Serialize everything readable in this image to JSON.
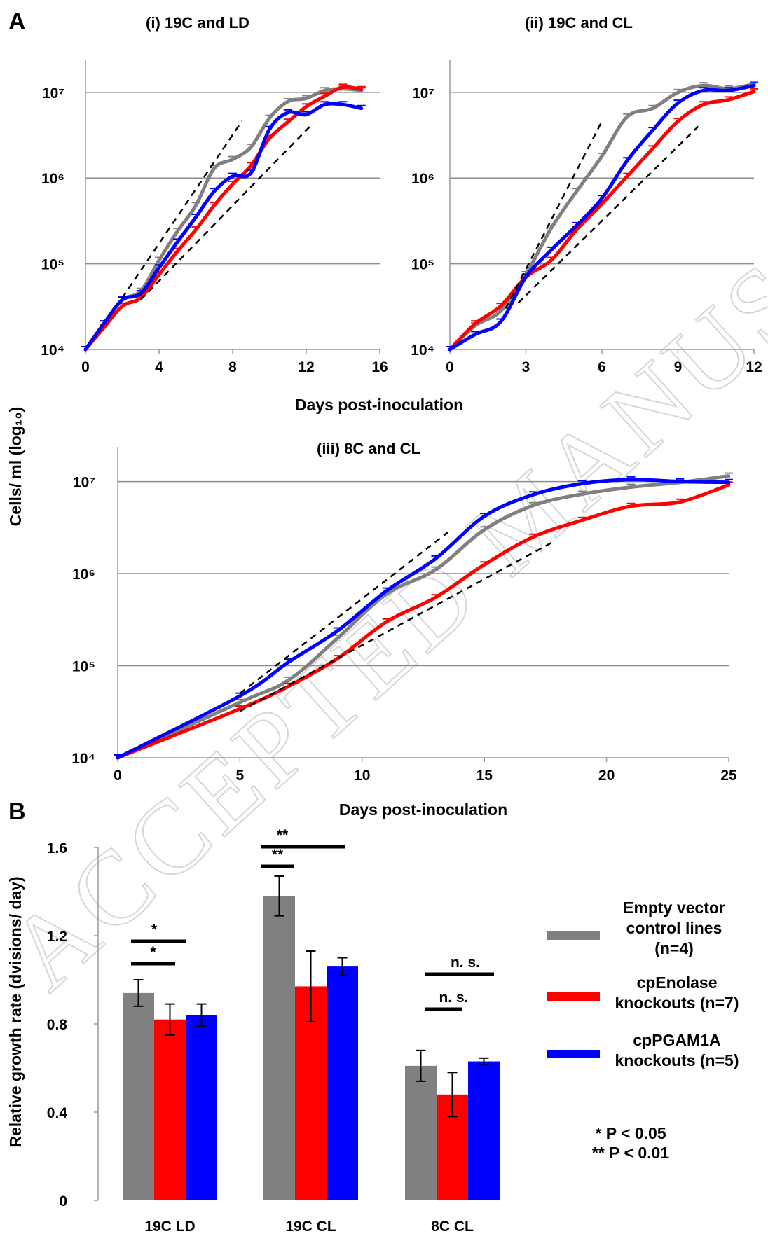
{
  "figure": {
    "watermark": "ACCEPTED MANUSCRIPT",
    "y_axis_label_A": "Cells/ ml (log₁₀)",
    "legend": [
      {
        "label_lines": [
          "Empty vector",
          "control lines",
          "(n=4)"
        ],
        "color": "#808080"
      },
      {
        "label_lines": [
          "cpEnolase",
          "knockouts (n=7)"
        ],
        "color": "#ff0000"
      },
      {
        "label_lines": [
          "cpPGAM1A",
          "knockouts (n=5)"
        ],
        "color": "#0000ff"
      }
    ],
    "significance_key": [
      "* P < 0.05",
      "** P < 0.01"
    ]
  },
  "chart_data": [
    {
      "panel": "A",
      "title": "(i) 19C and LD",
      "type": "line",
      "xlabel": "Days post-inoculation",
      "ylabel": "Cells/ ml (log₁₀)",
      "y_scale": "log",
      "xlim": [
        0,
        16
      ],
      "ylim": [
        10000,
        20000000
      ],
      "x_ticks": [
        0,
        4,
        8,
        12,
        16
      ],
      "y_ticks": [
        {
          "value": 10000,
          "label": "10⁴"
        },
        {
          "value": 100000,
          "label": "10⁵"
        },
        {
          "value": 1000000,
          "label": "10⁶"
        },
        {
          "value": 10000000,
          "label": "10⁷"
        }
      ],
      "grid": "horizontal",
      "series": [
        {
          "name": "Empty vector control lines",
          "color": "#808080",
          "x": [
            0,
            1,
            2,
            3,
            4,
            5,
            6,
            7,
            8,
            9,
            10,
            11,
            12,
            13,
            14,
            15
          ],
          "y": [
            10000,
            20000,
            38000,
            48000,
            110000,
            240000,
            480000,
            1300000,
            1650000,
            2300000,
            5000000,
            7800000,
            8500000,
            10500000,
            11000000,
            10500000
          ]
        },
        {
          "name": "cpEnolase knockouts",
          "color": "#ff0000",
          "x": [
            0,
            1,
            2,
            3,
            4,
            5,
            6,
            7,
            8,
            9,
            10,
            11,
            12,
            13,
            14,
            15
          ],
          "y": [
            10000,
            18000,
            32000,
            40000,
            75000,
            140000,
            250000,
            480000,
            850000,
            1400000,
            2900000,
            4500000,
            6800000,
            9000000,
            11500000,
            10800000
          ]
        },
        {
          "name": "cpPGAM1A knockouts",
          "color": "#0000ff",
          "x": [
            0,
            1,
            2,
            3,
            4,
            5,
            6,
            7,
            8,
            9,
            10,
            11,
            12,
            13,
            14,
            15
          ],
          "y": [
            10000,
            20000,
            38000,
            45000,
            90000,
            180000,
            350000,
            700000,
            1050000,
            1150000,
            3700000,
            5800000,
            5500000,
            7200000,
            7200000,
            6500000
          ]
        }
      ],
      "fit_lines": [
        {
          "x": [
            2,
            8.5
          ],
          "y": [
            40000,
            4600000
          ]
        },
        {
          "x": [
            3,
            12.3
          ],
          "y": [
            38000,
            4200000
          ]
        }
      ]
    },
    {
      "panel": "A",
      "title": "(ii) 19C and CL",
      "type": "line",
      "xlabel": "Days post-inoculation",
      "ylabel": "Cells/ ml (log₁₀)",
      "y_scale": "log",
      "xlim": [
        0,
        12
      ],
      "ylim": [
        10000,
        20000000
      ],
      "x_ticks": [
        0,
        3,
        6,
        9,
        12
      ],
      "y_ticks": [
        {
          "value": 10000,
          "label": "10⁴"
        },
        {
          "value": 100000,
          "label": "10⁵"
        },
        {
          "value": 1000000,
          "label": "10⁶"
        },
        {
          "value": 10000000,
          "label": "10⁷"
        }
      ],
      "grid": "horizontal",
      "series": [
        {
          "name": "Empty vector control lines",
          "color": "#808080",
          "x": [
            0,
            1,
            2,
            3,
            4,
            5,
            6,
            7,
            8,
            9,
            10,
            11,
            12
          ],
          "y": [
            10000,
            19000,
            28000,
            75000,
            260000,
            700000,
            1800000,
            5200000,
            6500000,
            10000000,
            12000000,
            11000000,
            12500000
          ]
        },
        {
          "name": "cpEnolase knockouts",
          "color": "#ff0000",
          "x": [
            0,
            1,
            2,
            3,
            4,
            5,
            6,
            7,
            8,
            9,
            10,
            11,
            12
          ],
          "y": [
            10000,
            20000,
            32000,
            70000,
            110000,
            250000,
            500000,
            1050000,
            2200000,
            4600000,
            7200000,
            8200000,
            10200000
          ]
        },
        {
          "name": "cpPGAM1A knockouts",
          "color": "#0000ff",
          "x": [
            0,
            1,
            2,
            3,
            4,
            5,
            6,
            7,
            8,
            9,
            10,
            11,
            12
          ],
          "y": [
            10000,
            15000,
            21000,
            70000,
            145000,
            280000,
            580000,
            1600000,
            3600000,
            7500000,
            10500000,
            10500000,
            12000000
          ]
        }
      ],
      "fit_lines": [
        {
          "x": [
            2.2,
            6
          ],
          "y": [
            30000,
            4600000
          ]
        },
        {
          "x": [
            2.7,
            9.8
          ],
          "y": [
            35000,
            4000000
          ]
        }
      ]
    },
    {
      "panel": "A",
      "title": "(iii) 8C and CL",
      "type": "line",
      "xlabel": "Days post-inoculation",
      "ylabel": "Cells/ ml (log₁₀)",
      "y_scale": "log",
      "xlim": [
        0,
        25
      ],
      "ylim": [
        10000,
        20000000
      ],
      "x_ticks": [
        0,
        5,
        10,
        15,
        20,
        25
      ],
      "y_ticks": [
        {
          "value": 10000,
          "label": "10⁴"
        },
        {
          "value": 100000,
          "label": "10⁵"
        },
        {
          "value": 1000000,
          "label": "10⁶"
        },
        {
          "value": 10000000,
          "label": "10⁷"
        }
      ],
      "grid": "horizontal",
      "series": [
        {
          "name": "Empty vector control lines",
          "color": "#808080",
          "x": [
            0,
            5,
            7,
            9,
            11,
            13,
            15,
            17,
            19,
            21,
            23,
            25
          ],
          "y": [
            10000,
            40000,
            70000,
            200000,
            600000,
            1100000,
            3000000,
            5500000,
            7300000,
            8700000,
            9800000,
            11500000
          ]
        },
        {
          "name": "cpEnolase knockouts",
          "color": "#ff0000",
          "x": [
            0,
            5,
            7,
            9,
            11,
            13,
            15,
            17,
            19,
            21,
            23,
            25
          ],
          "y": [
            10000,
            34000,
            60000,
            120000,
            300000,
            550000,
            1250000,
            2500000,
            3800000,
            5400000,
            6000000,
            9200000
          ]
        },
        {
          "name": "cpPGAM1A knockouts",
          "color": "#0000ff",
          "x": [
            0,
            5,
            7,
            9,
            11,
            13,
            15,
            17,
            19,
            21,
            23,
            25
          ],
          "y": [
            10000,
            47000,
            110000,
            240000,
            650000,
            1450000,
            4200000,
            7200000,
            9500000,
            10500000,
            10000000,
            9800000
          ]
        }
      ],
      "fit_lines": [
        {
          "x": [
            5,
            13.5
          ],
          "y": [
            50000,
            2800000
          ]
        },
        {
          "x": [
            5,
            17.8
          ],
          "y": [
            32000,
            2200000
          ]
        }
      ]
    },
    {
      "panel": "B",
      "type": "bar",
      "xlabel": "",
      "ylabel": "Relative growth rate (dvisions/ day)",
      "ylim": [
        0,
        1.6
      ],
      "y_ticks": [
        0,
        0.4,
        0.8,
        1.2,
        1.6
      ],
      "categories": [
        "19C LD",
        "19C CL",
        "8C CL"
      ],
      "series": [
        {
          "name": "Empty vector control lines",
          "color": "#808080",
          "values": [
            0.94,
            1.38,
            0.61
          ],
          "errors": [
            0.06,
            0.09,
            0.07
          ]
        },
        {
          "name": "cpEnolase knockouts",
          "color": "#ff0000",
          "values": [
            0.82,
            0.97,
            0.48
          ],
          "errors": [
            0.07,
            0.16,
            0.1
          ]
        },
        {
          "name": "cpPGAM1A knockouts",
          "color": "#0000ff",
          "values": [
            0.84,
            1.06,
            0.63
          ],
          "errors": [
            0.05,
            0.04,
            0.015
          ]
        }
      ],
      "significance": [
        {
          "category": 0,
          "from": 0,
          "to": 1,
          "label": "*"
        },
        {
          "category": 0,
          "from": 0,
          "to": 2,
          "label": "*"
        },
        {
          "category": 1,
          "from": 0,
          "to": 1,
          "label": "**"
        },
        {
          "category": 1,
          "from": 0,
          "to": 2,
          "label": "**"
        },
        {
          "category": 2,
          "from": 0,
          "to": 1,
          "label": "n. s."
        },
        {
          "category": 2,
          "from": 0,
          "to": 2,
          "label": "n. s."
        }
      ]
    }
  ]
}
